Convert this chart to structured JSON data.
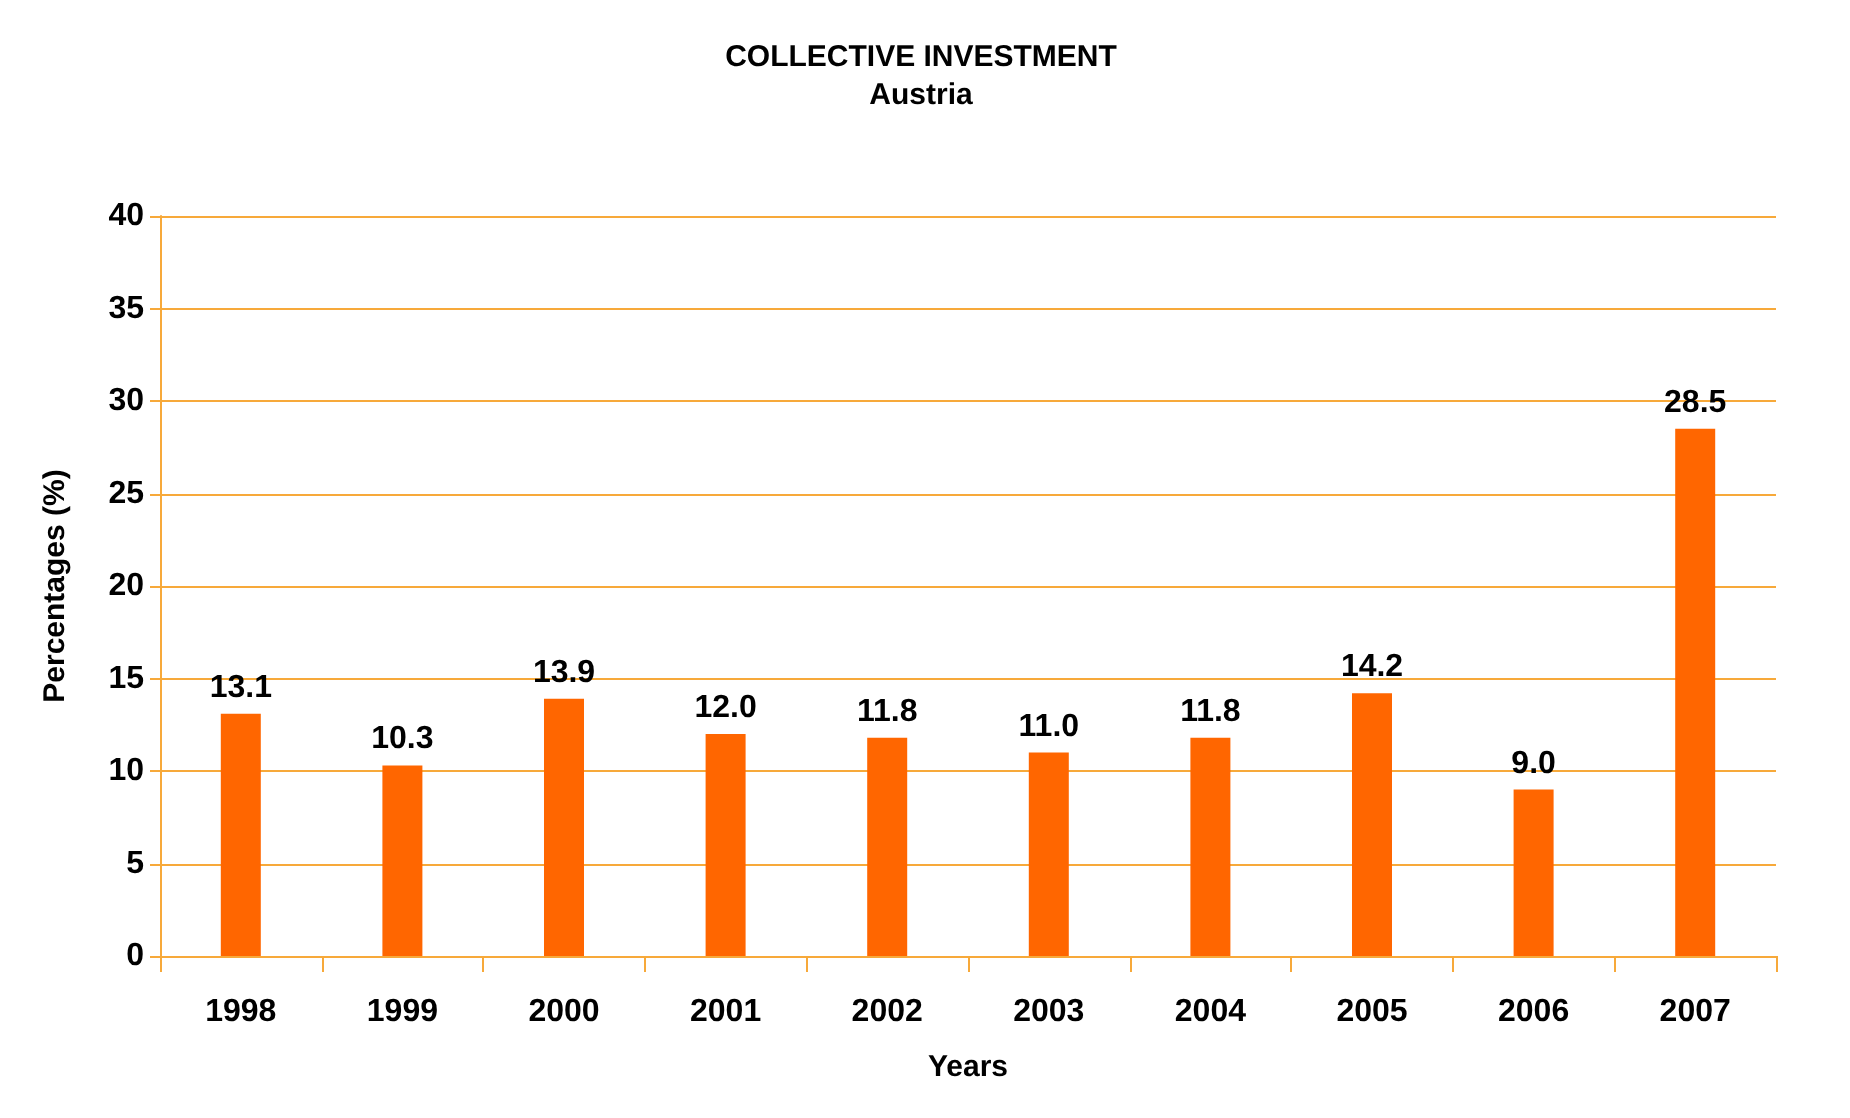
{
  "chart_data": {
    "type": "bar",
    "title": "COLLECTIVE INVESTMENT",
    "subtitle": "Austria",
    "xlabel": "Years",
    "ylabel": "Percentages (%)",
    "categories": [
      "1998",
      "1999",
      "2000",
      "2001",
      "2002",
      "2003",
      "2004",
      "2005",
      "2006",
      "2007"
    ],
    "values": [
      13.1,
      10.3,
      13.9,
      12.0,
      11.8,
      11.0,
      11.8,
      14.2,
      9.0,
      28.5
    ],
    "color": "#ff6600",
    "ylim": [
      0,
      40
    ],
    "yticks": [
      0,
      5,
      10,
      15,
      20,
      25,
      30,
      35,
      40
    ],
    "grid": "y",
    "value_labels": [
      "13.1",
      "10.3",
      "13.9",
      "12.0",
      "11.8",
      "11.0",
      "11.8",
      "14.2",
      "9.0",
      "28.5"
    ]
  }
}
